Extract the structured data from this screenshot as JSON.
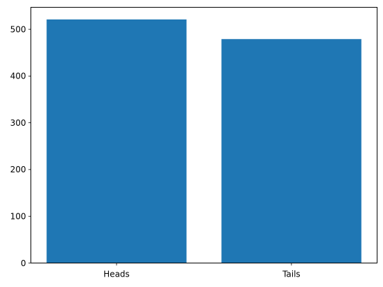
{
  "chart_data": {
    "type": "bar",
    "categories": [
      "Heads",
      "Tails"
    ],
    "values": [
      521,
      479
    ],
    "title": "",
    "xlabel": "",
    "ylabel": "",
    "ylim": [
      0,
      547
    ],
    "yticks": [
      0,
      100,
      200,
      300,
      400,
      500
    ],
    "grid": false,
    "bar_color": "#1f77b4"
  }
}
